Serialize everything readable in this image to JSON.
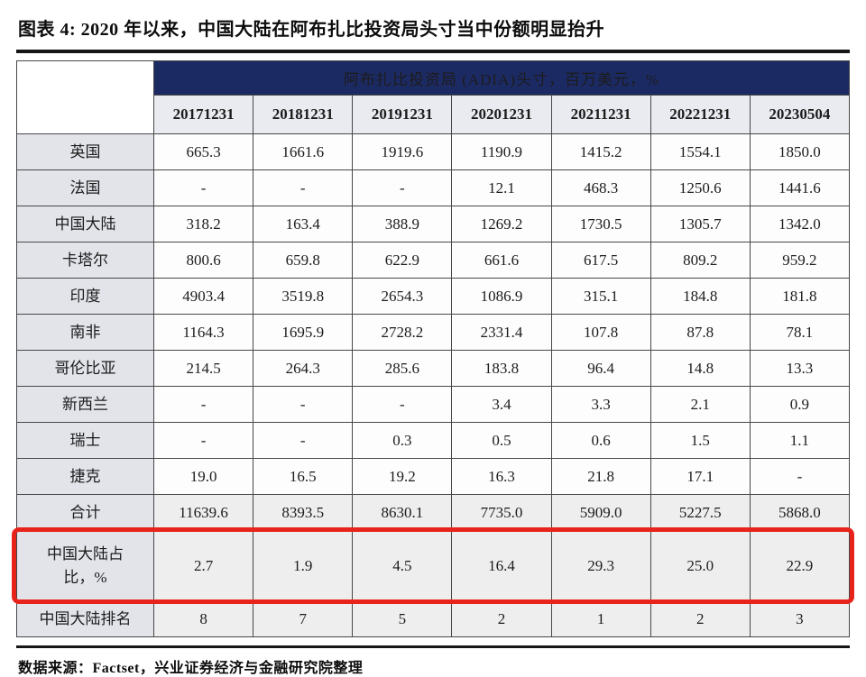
{
  "figure": {
    "title": "图表 4: 2020 年以来，中国大陆在阿布扎比投资局头寸当中份额明显抬升",
    "source_note": "数据来源：Factset，兴业证券经济与金融研究院整理"
  },
  "chart_data": {
    "type": "table",
    "title": "阿布扎比投资局 (ADIA)头寸，百万美元，%",
    "columns": [
      "20171231",
      "20181231",
      "20191231",
      "20201231",
      "20211231",
      "20221231",
      "20230504"
    ],
    "rows": [
      {
        "label": "英国",
        "values": [
          "665.3",
          "1661.6",
          "1919.6",
          "1190.9",
          "1415.2",
          "1554.1",
          "1850.0"
        ]
      },
      {
        "label": "法国",
        "values": [
          "-",
          "-",
          "-",
          "12.1",
          "468.3",
          "1250.6",
          "1441.6"
        ]
      },
      {
        "label": "中国大陆",
        "values": [
          "318.2",
          "163.4",
          "388.9",
          "1269.2",
          "1730.5",
          "1305.7",
          "1342.0"
        ]
      },
      {
        "label": "卡塔尔",
        "values": [
          "800.6",
          "659.8",
          "622.9",
          "661.6",
          "617.5",
          "809.2",
          "959.2"
        ]
      },
      {
        "label": "印度",
        "values": [
          "4903.4",
          "3519.8",
          "2654.3",
          "1086.9",
          "315.1",
          "184.8",
          "181.8"
        ]
      },
      {
        "label": "南非",
        "values": [
          "1164.3",
          "1695.9",
          "2728.2",
          "2331.4",
          "107.8",
          "87.8",
          "78.1"
        ]
      },
      {
        "label": "哥伦比亚",
        "values": [
          "214.5",
          "264.3",
          "285.6",
          "183.8",
          "96.4",
          "14.8",
          "13.3"
        ]
      },
      {
        "label": "新西兰",
        "values": [
          "-",
          "-",
          "-",
          "3.4",
          "3.3",
          "2.1",
          "0.9"
        ]
      },
      {
        "label": "瑞士",
        "values": [
          "-",
          "-",
          "0.3",
          "0.5",
          "0.6",
          "1.5",
          "1.1"
        ]
      },
      {
        "label": "捷克",
        "values": [
          "19.0",
          "16.5",
          "19.2",
          "16.3",
          "21.8",
          "17.1",
          "-"
        ]
      },
      {
        "label": "合计",
        "values": [
          "11639.6",
          "8393.5",
          "8630.1",
          "7735.0",
          "5909.0",
          "5227.5",
          "5868.0"
        ],
        "shaded": true
      },
      {
        "label": "中国大陆占比，%",
        "label_break": "中国大陆占\n比，%",
        "values": [
          "2.7",
          "1.9",
          "4.5",
          "16.4",
          "29.3",
          "25.0",
          "22.9"
        ],
        "shaded": true,
        "highlighted": true
      },
      {
        "label": "中国大陆排名",
        "values": [
          "8",
          "7",
          "5",
          "2",
          "1",
          "2",
          "3"
        ],
        "shaded": true
      }
    ],
    "legend_position": "none",
    "grid": true
  },
  "colors": {
    "group_header_bg": "#1c2a64",
    "group_header_text": "#ffffff",
    "date_header_bg": "#e9ebf0",
    "row_label_bg": "#e2e4ea",
    "shaded_row_bg": "#eeeeee",
    "cell_bg": "#fdfdfd",
    "grid_line": "#474747",
    "highlight_red": "#e8231c"
  }
}
